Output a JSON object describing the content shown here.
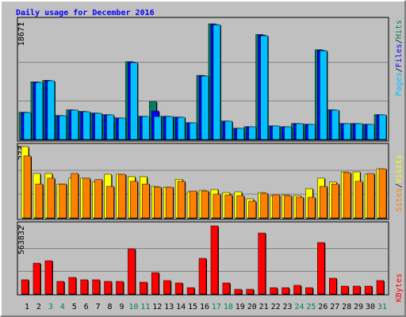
{
  "chart_data": [
    {
      "type": "bar",
      "title": "Daily usage for December 2016",
      "title_color": "#0000ff",
      "ylim": [
        0,
        18671
      ],
      "yticks": [
        18671
      ],
      "legend_separator": "/",
      "series": [
        {
          "name": "Hits",
          "color": "#00805c",
          "values": [
            4400,
            9300,
            9550,
            3880,
            4790,
            4530,
            4270,
            4010,
            3490,
            12560,
            3750,
            6138,
            3750,
            3620,
            2720,
            10350,
            18671,
            2980,
            1810,
            2070,
            16950,
            2200,
            2070,
            2590,
            2460,
            14490,
            4790,
            2590,
            2590,
            2460,
            4010
          ]
        },
        {
          "name": "Files",
          "color": "#0000ff",
          "values": [
            4370,
            9250,
            9500,
            3860,
            4760,
            4500,
            4240,
            3990,
            3470,
            12480,
            3730,
            4604,
            3730,
            3600,
            2700,
            10290,
            18560,
            2960,
            1800,
            2060,
            16850,
            2190,
            2060,
            2570,
            2440,
            14400,
            4760,
            2570,
            2570,
            2440,
            3990
          ]
        },
        {
          "name": "Pages",
          "color": "#00c0ff",
          "values": [
            4348,
            9207,
            9463,
            3836,
            4732,
            4476,
            4220,
            3964,
            3453,
            12405,
            3709,
            3709,
            3709,
            3581,
            2686,
            10231,
            18500,
            2941,
            1790,
            2046,
            16752,
            2174,
            2046,
            2558,
            2430,
            14323,
            4732,
            2558,
            2558,
            2430,
            3964
          ]
        }
      ]
    },
    {
      "type": "bar",
      "ylim": [
        0,
        273
      ],
      "yticks": [
        273
      ],
      "legend_separator": "/",
      "series": [
        {
          "name": "Visits",
          "color": "#ffff00",
          "values": [
            273,
            170,
            170,
            130,
            152,
            152,
            137,
            167,
            167,
            158,
            158,
            121,
            118,
            148,
            100,
            106,
            109,
            97,
            100,
            73,
            97,
            85,
            88,
            85,
            112,
            152,
            137,
            176,
            176,
            167,
            188
          ]
        },
        {
          "name": "Sites",
          "color": "#ff8000",
          "values": [
            237,
            130,
            152,
            130,
            170,
            152,
            147,
            121,
            167,
            140,
            130,
            118,
            118,
            140,
            103,
            103,
            91,
            88,
            85,
            64,
            94,
            88,
            85,
            79,
            79,
            121,
            130,
            173,
            140,
            170,
            188
          ]
        }
      ]
    },
    {
      "type": "bar",
      "ylim": [
        0,
        563832
      ],
      "yticks": [
        563832
      ],
      "categories": [
        "1",
        "2",
        "3",
        "4",
        "5",
        "6",
        "7",
        "8",
        "9",
        "10",
        "11",
        "12",
        "13",
        "14",
        "15",
        "16",
        "17",
        "18",
        "19",
        "20",
        "21",
        "22",
        "23",
        "24",
        "25",
        "26",
        "27",
        "28",
        "29",
        "30",
        "31"
      ],
      "category_colors": [
        "#000000",
        "#000000",
        "#00805c",
        "#00805c",
        "#000000",
        "#000000",
        "#000000",
        "#000000",
        "#000000",
        "#00805c",
        "#00805c",
        "#000000",
        "#000000",
        "#000000",
        "#000000",
        "#000000",
        "#00805c",
        "#00805c",
        "#000000",
        "#000000",
        "#000000",
        "#000000",
        "#000000",
        "#00805c",
        "#00805c",
        "#000000",
        "#000000",
        "#000000",
        "#000000",
        "#000000",
        "#00805c"
      ],
      "series": [
        {
          "name": "KBytes",
          "color": "#ff0000",
          "values": [
            118010,
            255690,
            275360,
            104900,
            137680,
            118010,
            118010,
            104900,
            104900,
            373700,
            98340,
            177020,
            111450,
            91790,
            52450,
            295030,
            563832,
            91790,
            39340,
            39340,
            504830,
            52450,
            52450,
            72120,
            52450,
            426150,
            131120,
            65560,
            65560,
            65560,
            111450
          ]
        }
      ]
    }
  ]
}
